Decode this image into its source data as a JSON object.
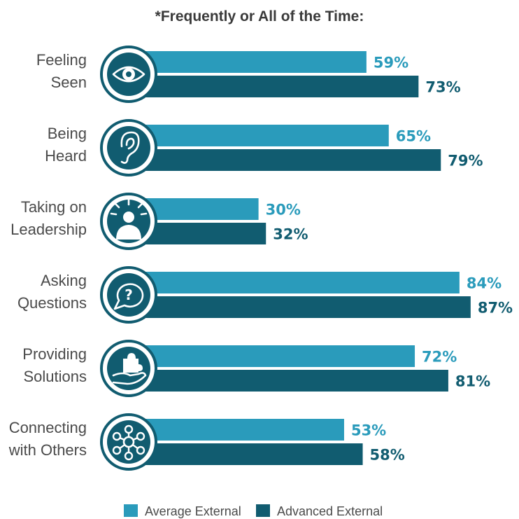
{
  "chart_data": {
    "type": "bar",
    "orientation": "horizontal",
    "title": "*Frequently or All of the Time:",
    "categories": [
      [
        "Feeling",
        "Seen"
      ],
      [
        "Being",
        "Heard"
      ],
      [
        "Taking on",
        "Leadership"
      ],
      [
        "Asking",
        "Questions"
      ],
      [
        "Providing",
        "Solutions"
      ],
      [
        "Connecting",
        "with Others"
      ]
    ],
    "icons": [
      "eye-icon",
      "ear-icon",
      "leader-icon",
      "question-bubble-icon",
      "hand-puzzle-icon",
      "network-icon"
    ],
    "series": [
      {
        "name": "Average External",
        "values": [
          59,
          65,
          30,
          84,
          72,
          53
        ],
        "color": "#2a9bbb",
        "label_color": "#2a9bbb"
      },
      {
        "name": "Advanced External",
        "values": [
          73,
          79,
          32,
          87,
          81,
          58
        ],
        "color": "#115c70",
        "label_color": "#115c70"
      }
    ],
    "value_suffix": "%",
    "xlim": [
      0,
      100
    ],
    "grid": false,
    "legend_position": "bottom"
  }
}
